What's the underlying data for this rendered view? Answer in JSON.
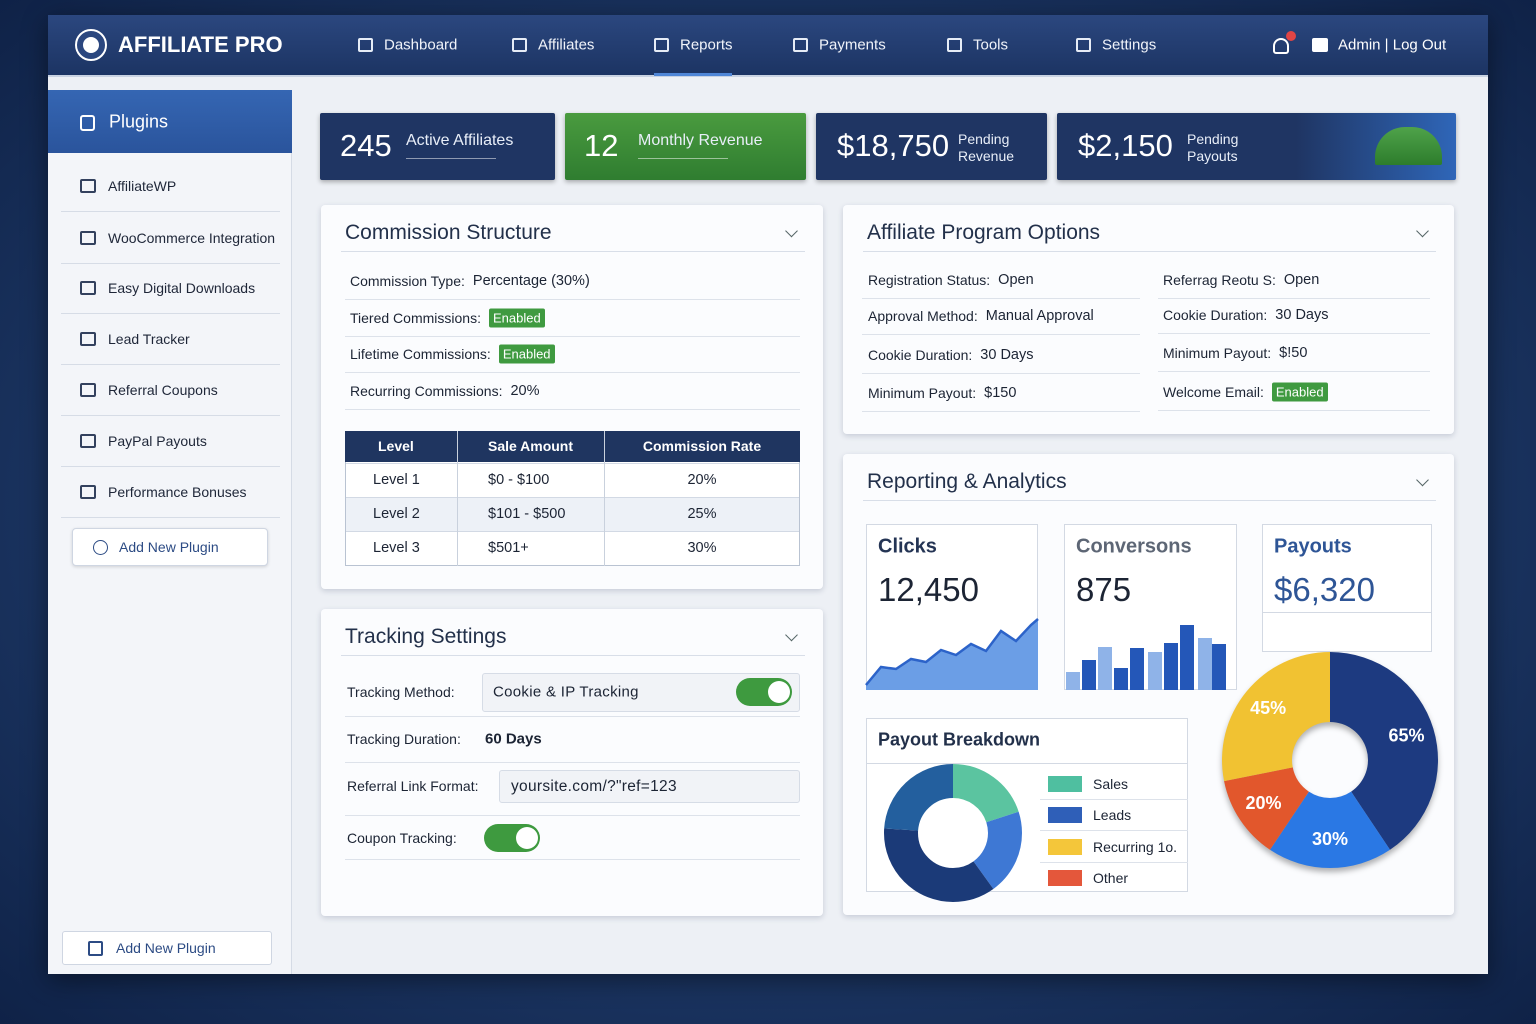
{
  "header": {
    "brand": "AFFILIATE PRO",
    "nav": [
      "Dashboard",
      "Affiliates",
      "Reports",
      "Payments",
      "Tools",
      "Settings"
    ],
    "account": "Admin | Log Out"
  },
  "sidebar": {
    "title": "Plugins",
    "items": [
      "AffiliateWP",
      "WooCommerce Integration",
      "Easy Digital Downloads",
      "Lead Tracker",
      "Referral Coupons",
      "PayPal Payouts",
      "Performance Bonuses"
    ],
    "add_button": "Add New Plugin",
    "footer_button": "Add New Plugin"
  },
  "stats": [
    {
      "value": "245",
      "label": "Active Affiliates"
    },
    {
      "value": "12",
      "label": "Monthly Revenue"
    },
    {
      "value": "$18,750",
      "label": "Pending Revenue"
    },
    {
      "value": "$2,150",
      "label": "Pending Payouts"
    }
  ],
  "commission_structure": {
    "title": "Commission Structure",
    "fields": [
      {
        "label": "Commission Type:",
        "value": "Percentage (30%)"
      },
      {
        "label": "Tiered Commissions:",
        "badge": "Enabled"
      },
      {
        "label": "Lifetime Commissions:",
        "badge": "Enabled"
      },
      {
        "label": "Recurring Commissions:",
        "value": "20%"
      }
    ],
    "table": {
      "headers": [
        "Level",
        "Sale Amount",
        "Commission Rate"
      ],
      "rows": [
        [
          "Level 1",
          "$0 - $100",
          "20%"
        ],
        [
          "Level 2",
          "$101 - $500",
          "25%"
        ],
        [
          "Level 3",
          "$501+",
          "30%"
        ]
      ]
    }
  },
  "tracking_settings": {
    "title": "Tracking Settings",
    "fields": [
      {
        "label": "Tracking Method:",
        "value": "Cookie & IP Tracking"
      },
      {
        "label": "Tracking Duration:",
        "value": "60 Days"
      },
      {
        "label": "Referral Link Format:",
        "value": "yoursite.com/?\"ref=123"
      },
      {
        "label": "Coupon Tracking:"
      }
    ]
  },
  "program_options": {
    "title": "Affiliate Program Options",
    "left": [
      {
        "label": "Registration Status:",
        "value": "Open"
      },
      {
        "label": "Approval Method:",
        "value": "Manual Approval"
      },
      {
        "label": "Cookie Duration:",
        "value": "30 Days"
      },
      {
        "label": "Minimum Payout:",
        "value": "$150"
      }
    ],
    "right": [
      {
        "label": "Referrag Reotu S:",
        "value": "Open"
      },
      {
        "label": "Cookie Duration:",
        "value": "30 Days"
      },
      {
        "label": "Minimum Payout:",
        "value": "$!50"
      },
      {
        "label": "Welcome Email:",
        "badge": "Enabled"
      }
    ]
  },
  "reporting": {
    "title": "Reporting & Analytics",
    "metrics": [
      {
        "label": "Clicks",
        "value": "12,450"
      },
      {
        "label": "Conversons",
        "value": "875"
      },
      {
        "label": "Payouts",
        "value": "$6,320"
      }
    ],
    "payout_breakdown": {
      "title": "Payout Breakdown",
      "legend": [
        "Sales",
        "Leads",
        "Recurring 1o.",
        "Other"
      ]
    }
  },
  "chart_data": {
    "type": "pie",
    "values": [
      65,
      30,
      20,
      45
    ],
    "value_labels": [
      "65%",
      "30%",
      "20%",
      "45%"
    ],
    "colors": [
      "#1d3a80",
      "#2a78e4",
      "#e2572c",
      "#f1c232"
    ]
  }
}
